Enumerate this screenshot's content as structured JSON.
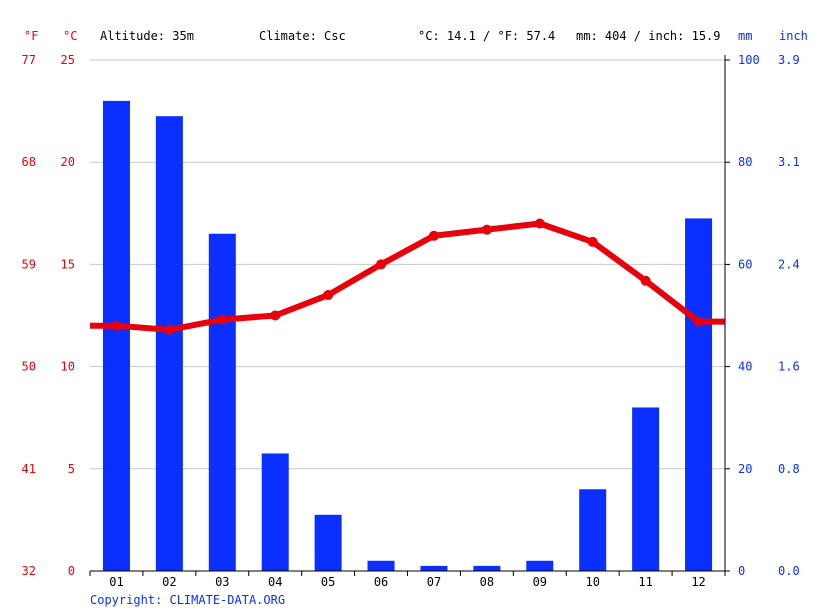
{
  "header": {
    "unit_f": "°F",
    "unit_c": "°C",
    "altitude": "Altitude: 35m",
    "climate": "Climate: Csc",
    "temp_summary": "°C: 14.1 / °F: 57.4",
    "precip_summary": "mm: 404 / inch: 15.9",
    "unit_mm": "mm",
    "unit_inch": "inch"
  },
  "footer": {
    "copyright": "Copyright: CLIMATE-DATA.ORG"
  },
  "colors": {
    "temperature": "#e8000b",
    "precipitation": "#0a2fff",
    "grid": "#c8c8c8"
  },
  "chart_data": {
    "type": "bar",
    "categories": [
      "01",
      "02",
      "03",
      "04",
      "05",
      "06",
      "07",
      "08",
      "09",
      "10",
      "11",
      "12"
    ],
    "series": [
      {
        "type": "bar",
        "axis": "right",
        "unit": "mm",
        "values": [
          92,
          89,
          66,
          23,
          11,
          2,
          1,
          1,
          2,
          16,
          32,
          69
        ]
      },
      {
        "type": "line",
        "axis": "left",
        "unit": "°C",
        "values": [
          12.0,
          11.8,
          12.3,
          12.5,
          13.5,
          15.0,
          16.4,
          16.7,
          17.0,
          16.1,
          14.2,
          12.2
        ]
      }
    ],
    "y_left_celsius": {
      "ticks": [
        "0",
        "5",
        "10",
        "15",
        "20",
        "25"
      ],
      "range": [
        0,
        25
      ]
    },
    "y_left_fahrenheit": {
      "ticks": [
        "32",
        "41",
        "50",
        "59",
        "68",
        "77"
      ]
    },
    "y_right_mm": {
      "ticks": [
        "0",
        "20",
        "40",
        "60",
        "80",
        "100"
      ],
      "range": [
        0,
        100
      ]
    },
    "y_right_inch": {
      "ticks": [
        "0.0",
        "0.8",
        "1.6",
        "2.4",
        "3.1",
        "3.9"
      ]
    },
    "grid": true
  }
}
